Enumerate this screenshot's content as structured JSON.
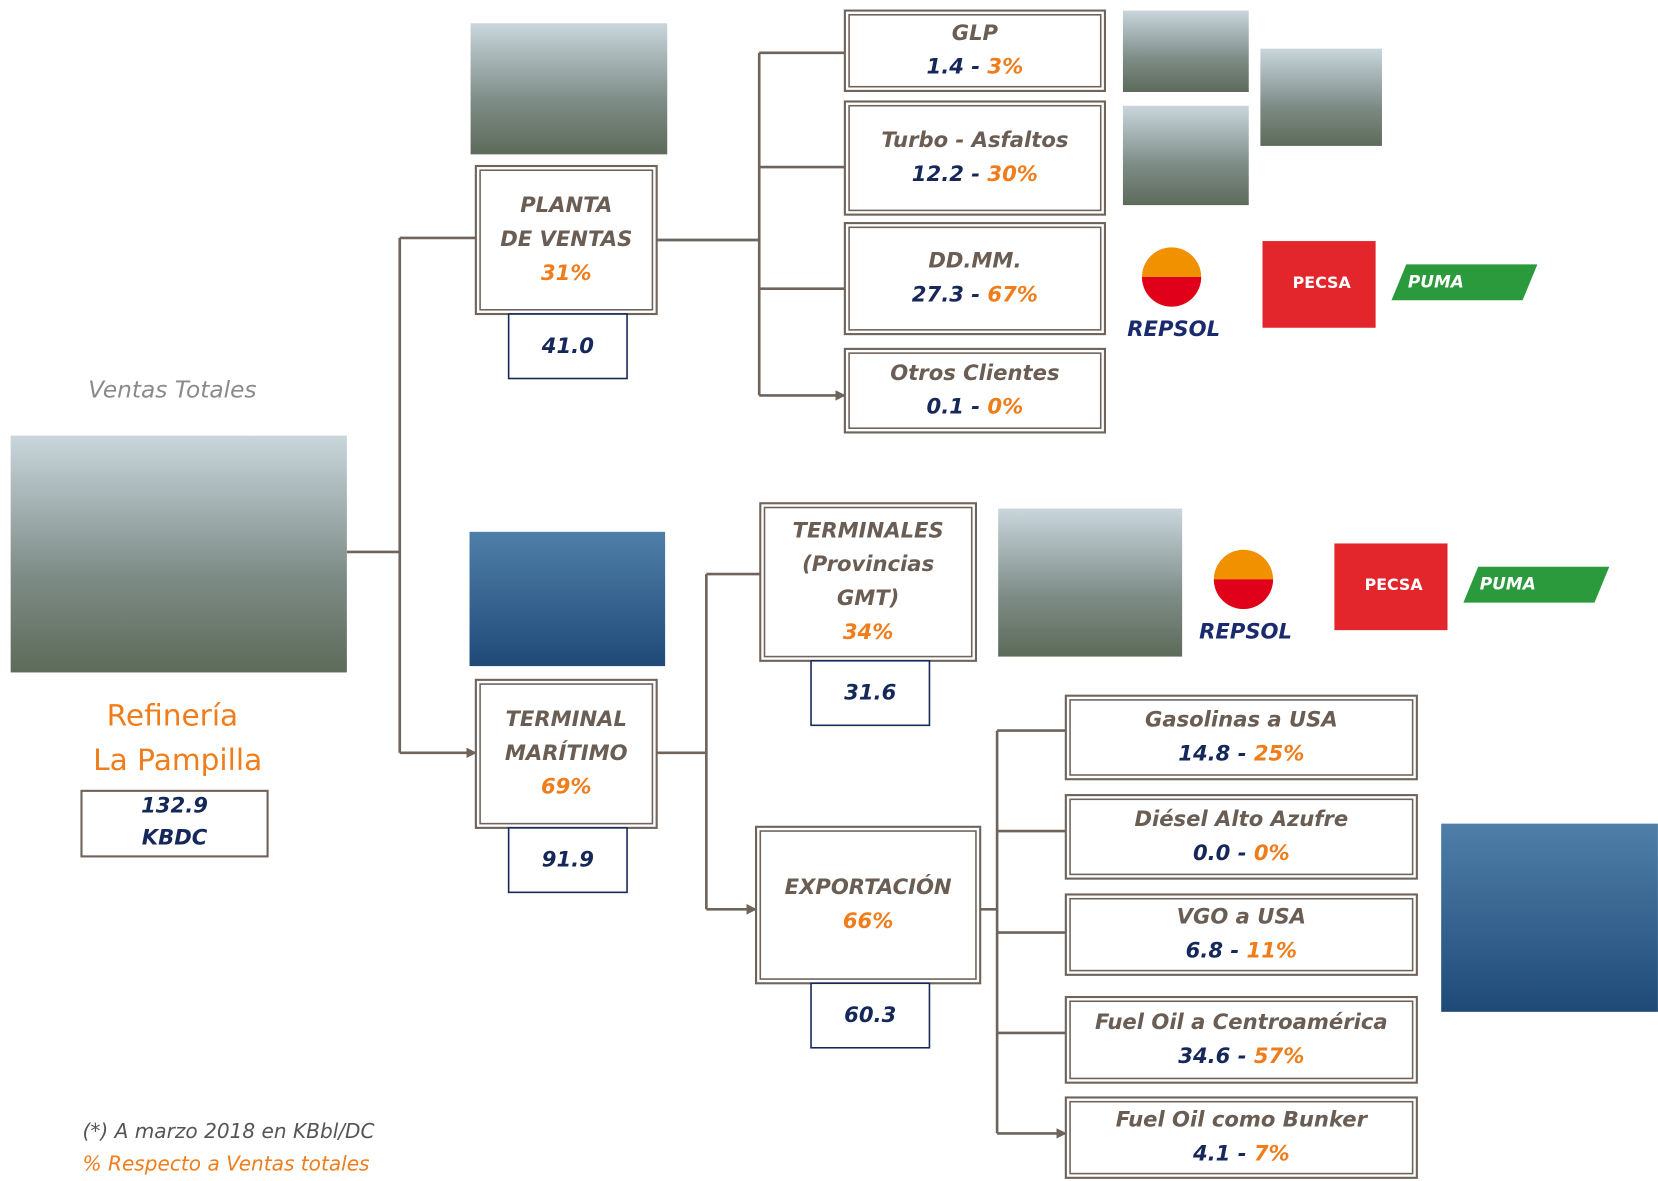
{
  "refinery": {
    "caption": "Ventas Totales",
    "name": [
      "Refinería",
      "La Pampilla"
    ],
    "total": [
      "132.9",
      "KBDC"
    ]
  },
  "separator": " - ",
  "branches": [
    {
      "lines": [
        "PLANTA",
        "DE VENTAS"
      ],
      "share": "31%",
      "volume": "41.0"
    },
    {
      "lines": [
        "TERMINAL",
        "MARÍTIMO"
      ],
      "share": "69%",
      "volume": "91.9"
    },
    {
      "lines": [
        "TERMINALES",
        "(Provincias",
        "GMT)"
      ],
      "share": "34%",
      "volume": "31.6"
    },
    {
      "lines": [
        "EXPORTACIÓN"
      ],
      "share": "66%",
      "volume": "60.3"
    }
  ],
  "leaves": [
    {
      "name": "GLP",
      "value": "1.4",
      "share": "3%"
    },
    {
      "name": "Turbo - Asfaltos",
      "value": "12.2",
      "share": "30%"
    },
    {
      "name": "DD.MM.",
      "value": "27.3",
      "share": "67%"
    },
    {
      "name": "Otros Clientes",
      "value": "0.1",
      "share": "0%"
    },
    {
      "name": "Gasolinas a USA",
      "value": "14.8",
      "share": "25%"
    },
    {
      "name": "Diésel Alto Azufre",
      "value": "0.0",
      "share": "0%"
    },
    {
      "name": "VGO a USA",
      "value": "6.8",
      "share": "11%"
    },
    {
      "name": "Fuel Oil a Centroamérica",
      "value": "34.6",
      "share": "57%"
    },
    {
      "name": "Fuel Oil como Bunker",
      "value": "4.1",
      "share": "7%"
    }
  ],
  "logos": [
    "REPSOL",
    "PECSA",
    "PUMA"
  ],
  "footnotes": [
    "(*) A marzo 2018 en KBbl/DC",
    "% Respecto a Ventas totales"
  ]
}
